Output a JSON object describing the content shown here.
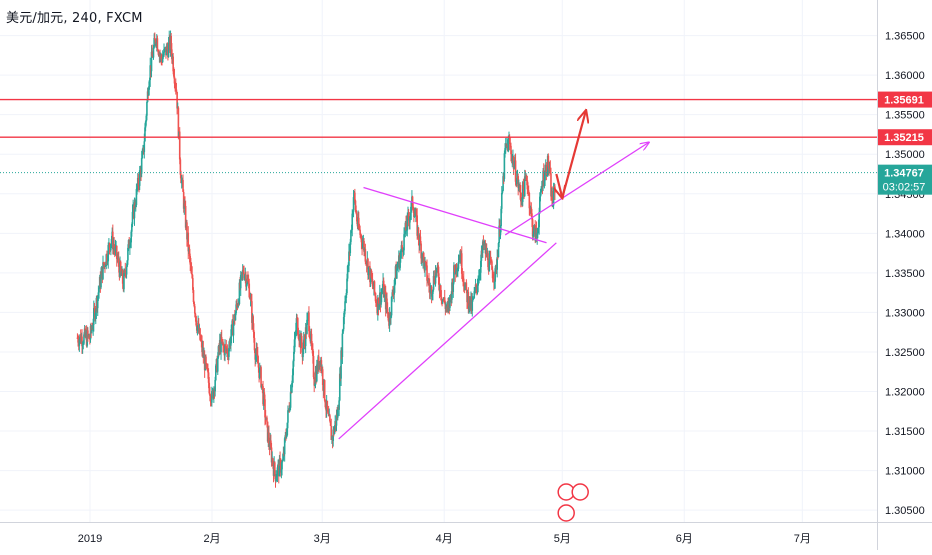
{
  "header": {
    "symbol_line": "美元/加元, 240, FXCM"
  },
  "chart_data": {
    "type": "candlestick",
    "title": "美元/加元, 240, FXCM",
    "ylim": [
      1.3035,
      1.3695
    ],
    "x_ticks": [
      "2019",
      "2月",
      "3月",
      "4月",
      "5月",
      "6月",
      "7月"
    ],
    "y_ticks": [
      "1.36500",
      "1.36000",
      "1.35500",
      "1.35000",
      "1.34500",
      "1.34000",
      "1.33500",
      "1.33000",
      "1.32500",
      "1.32000",
      "1.31500",
      "1.31000",
      "1.30500"
    ],
    "horizontal_levels": [
      {
        "label": "1.35691",
        "value": 1.35691,
        "color": "#f23645"
      },
      {
        "label": "1.35215",
        "value": 1.35215,
        "color": "#f23645"
      }
    ],
    "last_price": {
      "label": "1.34767",
      "value": 1.34767,
      "countdown": "03:02:57",
      "color": "#26a69a"
    },
    "up_color": "#26a69a",
    "down_color": "#ef5350",
    "pink_color": "#e040fb",
    "arrow_color": "#e53935",
    "price_path": [
      [
        0.0,
        1.3268
      ],
      [
        3.0,
        1.335
      ],
      [
        5.5,
        1.3395
      ],
      [
        8.5,
        1.3335
      ],
      [
        11.0,
        1.3425
      ],
      [
        13.5,
        1.35
      ],
      [
        15.0,
        1.36
      ],
      [
        16.8,
        1.365
      ],
      [
        18.0,
        1.362
      ],
      [
        20.5,
        1.364
      ],
      [
        22.0,
        1.358
      ],
      [
        23.0,
        1.348
      ],
      [
        25.0,
        1.338
      ],
      [
        27.0,
        1.329
      ],
      [
        29.0,
        1.324
      ],
      [
        31.0,
        1.319
      ],
      [
        33.0,
        1.326
      ],
      [
        35.0,
        1.325
      ],
      [
        37.0,
        1.33
      ],
      [
        39.0,
        1.3355
      ],
      [
        40.5,
        1.333
      ],
      [
        42.0,
        1.325
      ],
      [
        43.5,
        1.3215
      ],
      [
        45.0,
        1.315
      ],
      [
        47.0,
        1.3095
      ],
      [
        49.0,
        1.311
      ],
      [
        51.0,
        1.32
      ],
      [
        52.5,
        1.329
      ],
      [
        54.0,
        1.325
      ],
      [
        55.5,
        1.3295
      ],
      [
        57.0,
        1.3215
      ],
      [
        58.5,
        1.3245
      ],
      [
        60.0,
        1.318
      ],
      [
        61.5,
        1.314
      ],
      [
        63.0,
        1.3175
      ],
      [
        64.5,
        1.33
      ],
      [
        66.0,
        1.338
      ],
      [
        67.0,
        1.345
      ],
      [
        68.0,
        1.341
      ],
      [
        69.5,
        1.3385
      ],
      [
        71.0,
        1.335
      ],
      [
        73.0,
        1.331
      ],
      [
        74.5,
        1.333
      ],
      [
        76.0,
        1.329
      ],
      [
        77.5,
        1.3345
      ],
      [
        79.0,
        1.3375
      ],
      [
        80.5,
        1.341
      ],
      [
        82.0,
        1.344
      ],
      [
        83.5,
        1.3395
      ],
      [
        85.0,
        1.336
      ],
      [
        86.5,
        1.3325
      ],
      [
        88.0,
        1.3355
      ],
      [
        89.5,
        1.332
      ],
      [
        91.0,
        1.33
      ],
      [
        92.5,
        1.335
      ],
      [
        94.0,
        1.3375
      ],
      [
        95.5,
        1.3325
      ],
      [
        97.0,
        1.3305
      ],
      [
        98.5,
        1.334
      ],
      [
        100.0,
        1.3385
      ],
      [
        101.5,
        1.336
      ],
      [
        103.0,
        1.3345
      ],
      [
        104.5,
        1.343
      ],
      [
        105.5,
        1.3505
      ],
      [
        106.5,
        1.3515
      ],
      [
        108.0,
        1.348
      ],
      [
        109.5,
        1.3445
      ],
      [
        111.0,
        1.347
      ],
      [
        112.5,
        1.3405
      ],
      [
        113.5,
        1.3395
      ],
      [
        115.0,
        1.347
      ],
      [
        116.5,
        1.349
      ],
      [
        117.5,
        1.3435
      ],
      [
        118.3,
        1.3465
      ]
    ],
    "pink_lines": [
      {
        "from": [
          63.2,
          1.314
        ],
        "to": [
          118.5,
          1.3388
        ],
        "arrow": false
      },
      {
        "from": [
          69.5,
          1.3458
        ],
        "to": [
          116.0,
          1.3388
        ],
        "arrow": false
      },
      {
        "from": [
          105.5,
          1.3398
        ],
        "to": [
          142.0,
          1.3515
        ],
        "arrow": true
      }
    ],
    "red_arrows": [
      {
        "from": [
          118.5,
          1.3475
        ],
        "to": [
          120.0,
          1.3445
        ]
      },
      {
        "from": [
          120.0,
          1.3445
        ],
        "to": [
          126.0,
          1.3555
        ]
      }
    ],
    "axis": {
      "x_tick_days": [
        0,
        31,
        59,
        90,
        120,
        151,
        181
      ]
    }
  }
}
